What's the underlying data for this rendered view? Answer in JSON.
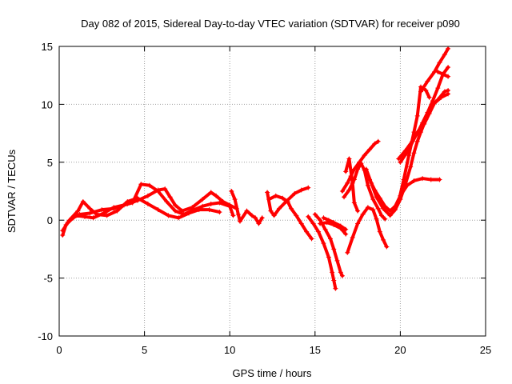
{
  "chart_data": {
    "type": "scatter",
    "title": "Day 082 of 2015, Sidereal Day-to-day VTEC variation (SDTVAR) for receiver p090",
    "xlabel": "GPS time / hours",
    "ylabel": "SDTVAR / TECUs",
    "xlim": [
      0,
      25
    ],
    "ylim": [
      -10,
      15
    ],
    "x_ticks": [
      0,
      5,
      10,
      15,
      20,
      25
    ],
    "y_ticks": [
      -10,
      -5,
      0,
      5,
      10,
      15
    ],
    "x_tick_labels": [
      "0",
      "5",
      "10",
      "15",
      "20",
      "25"
    ],
    "y_tick_labels": [
      "-10",
      "-5",
      "0",
      "5",
      "10",
      "15"
    ],
    "grid": true,
    "marker": "+",
    "color": "#ff0000",
    "series": [
      {
        "points": [
          [
            0.2,
            -1.3
          ],
          [
            0.4,
            -0.4
          ],
          [
            0.8,
            0.2
          ],
          [
            1.2,
            0.5
          ],
          [
            1.8,
            0.6
          ],
          [
            2.5,
            0.9
          ],
          [
            3.2,
            1.0
          ],
          [
            4.0,
            1.4
          ],
          [
            4.6,
            1.7
          ],
          [
            5.2,
            2.1
          ],
          [
            5.8,
            2.6
          ],
          [
            6.2,
            2.7
          ],
          [
            6.5,
            2.0
          ],
          [
            6.8,
            1.3
          ],
          [
            7.2,
            0.8
          ],
          [
            7.8,
            1.1
          ],
          [
            8.4,
            1.8
          ],
          [
            8.9,
            2.4
          ],
          [
            9.2,
            2.1
          ],
          [
            9.6,
            1.6
          ],
          [
            10.0,
            1.3
          ],
          [
            10.4,
            1.0
          ]
        ]
      },
      {
        "points": [
          [
            0.5,
            -0.2
          ],
          [
            1.0,
            0.4
          ],
          [
            1.5,
            0.3
          ],
          [
            2.0,
            0.2
          ],
          [
            2.6,
            0.6
          ],
          [
            3.2,
            1.1
          ],
          [
            3.8,
            1.3
          ],
          [
            4.3,
            1.5
          ],
          [
            4.8,
            3.1
          ],
          [
            5.3,
            3.0
          ],
          [
            5.8,
            2.5
          ],
          [
            6.3,
            1.6
          ],
          [
            6.8,
            0.8
          ],
          [
            7.3,
            0.5
          ],
          [
            7.9,
            0.9
          ],
          [
            8.4,
            1.2
          ],
          [
            8.9,
            1.4
          ],
          [
            9.4,
            1.5
          ],
          [
            10.0,
            1.2
          ],
          [
            10.2,
            0.4
          ]
        ]
      },
      {
        "points": [
          [
            0.2,
            -0.9
          ],
          [
            0.6,
            0.0
          ],
          [
            1.1,
            0.8
          ],
          [
            1.4,
            1.6
          ],
          [
            1.8,
            1.0
          ],
          [
            2.2,
            0.5
          ],
          [
            2.8,
            0.4
          ],
          [
            3.4,
            0.8
          ],
          [
            4.0,
            1.6
          ],
          [
            4.6,
            1.9
          ],
          [
            5.2,
            1.4
          ],
          [
            5.8,
            0.9
          ],
          [
            6.4,
            0.4
          ],
          [
            7.0,
            0.2
          ],
          [
            7.6,
            0.6
          ],
          [
            8.2,
            0.9
          ],
          [
            8.8,
            0.9
          ],
          [
            9.4,
            0.7
          ]
        ]
      },
      {
        "points": [
          [
            10.1,
            2.5
          ],
          [
            10.3,
            1.8
          ],
          [
            10.5,
            0.5
          ],
          [
            10.6,
            -0.1
          ],
          [
            11.0,
            0.8
          ],
          [
            11.3,
            0.4
          ],
          [
            11.5,
            0.2
          ],
          [
            11.7,
            -0.3
          ],
          [
            11.9,
            0.2
          ]
        ]
      },
      {
        "points": [
          [
            12.2,
            2.4
          ],
          [
            12.4,
            0.8
          ],
          [
            12.6,
            0.4
          ],
          [
            12.9,
            1.0
          ],
          [
            13.3,
            1.6
          ],
          [
            13.8,
            2.3
          ],
          [
            14.2,
            2.6
          ],
          [
            14.6,
            2.8
          ]
        ]
      },
      {
        "points": [
          [
            12.3,
            1.8
          ],
          [
            12.7,
            2.1
          ],
          [
            13.1,
            1.9
          ],
          [
            13.4,
            1.6
          ],
          [
            13.6,
            1.0
          ],
          [
            13.9,
            0.4
          ],
          [
            14.2,
            -0.3
          ],
          [
            14.5,
            -1.0
          ],
          [
            14.8,
            -1.6
          ]
        ]
      },
      {
        "points": [
          [
            15.0,
            0.5
          ],
          [
            15.3,
            0.0
          ],
          [
            15.6,
            -0.8
          ],
          [
            15.9,
            -1.6
          ],
          [
            16.1,
            -2.5
          ],
          [
            16.3,
            -3.5
          ],
          [
            16.5,
            -4.5
          ],
          [
            16.6,
            -4.8
          ]
        ]
      },
      {
        "points": [
          [
            14.6,
            0.3
          ],
          [
            14.9,
            -0.3
          ],
          [
            15.2,
            -1.0
          ],
          [
            15.5,
            -2.0
          ],
          [
            15.8,
            -3.2
          ],
          [
            16.0,
            -4.5
          ],
          [
            16.1,
            -5.2
          ],
          [
            16.2,
            -5.9
          ]
        ]
      },
      {
        "points": [
          [
            15.3,
            -0.3
          ],
          [
            15.7,
            -0.2
          ],
          [
            16.1,
            -0.4
          ],
          [
            16.5,
            -0.7
          ],
          [
            16.8,
            -1.2
          ]
        ]
      },
      {
        "points": [
          [
            15.5,
            0.2
          ],
          [
            15.8,
            0.0
          ],
          [
            16.1,
            -0.2
          ],
          [
            16.5,
            -0.5
          ],
          [
            16.8,
            -0.8
          ]
        ]
      },
      {
        "points": [
          [
            16.6,
            2.5
          ],
          [
            16.9,
            3.2
          ],
          [
            17.1,
            3.8
          ],
          [
            17.3,
            4.4
          ],
          [
            17.6,
            5.0
          ],
          [
            17.9,
            5.6
          ],
          [
            18.2,
            6.1
          ],
          [
            18.5,
            6.6
          ],
          [
            18.7,
            6.8
          ]
        ]
      },
      {
        "points": [
          [
            16.7,
            2.0
          ],
          [
            17.0,
            2.6
          ],
          [
            17.3,
            3.5
          ],
          [
            17.5,
            4.4
          ],
          [
            17.7,
            4.9
          ],
          [
            17.9,
            4.3
          ],
          [
            18.1,
            3.0
          ],
          [
            18.4,
            1.8
          ],
          [
            18.7,
            1.0
          ],
          [
            18.9,
            0.4
          ],
          [
            19.1,
            0.1
          ]
        ]
      },
      {
        "points": [
          [
            16.8,
            4.2
          ],
          [
            17.0,
            5.3
          ],
          [
            17.2,
            3.2
          ],
          [
            17.3,
            1.5
          ],
          [
            17.5,
            0.8
          ]
        ]
      },
      {
        "points": [
          [
            16.9,
            -2.8
          ],
          [
            17.2,
            -1.5
          ],
          [
            17.5,
            -0.3
          ],
          [
            17.8,
            0.5
          ],
          [
            18.1,
            1.1
          ],
          [
            18.4,
            0.9
          ],
          [
            18.6,
            0.1
          ],
          [
            18.8,
            -1.0
          ],
          [
            19.0,
            -1.7
          ],
          [
            19.2,
            -2.3
          ]
        ]
      },
      {
        "points": [
          [
            18.0,
            4.4
          ],
          [
            18.3,
            3.2
          ],
          [
            18.6,
            2.0
          ],
          [
            19.0,
            1.0
          ],
          [
            19.4,
            0.4
          ],
          [
            19.7,
            0.9
          ],
          [
            20.0,
            1.8
          ],
          [
            20.3,
            3.1
          ],
          [
            20.6,
            4.6
          ],
          [
            20.8,
            5.8
          ],
          [
            21.0,
            6.8
          ],
          [
            21.2,
            7.6
          ],
          [
            21.5,
            8.7
          ],
          [
            21.8,
            9.8
          ],
          [
            22.2,
            10.4
          ],
          [
            22.6,
            11.1
          ],
          [
            22.8,
            11.2
          ]
        ]
      },
      {
        "points": [
          [
            18.2,
            3.5
          ],
          [
            18.5,
            2.6
          ],
          [
            18.8,
            1.9
          ],
          [
            19.1,
            1.2
          ],
          [
            19.4,
            0.8
          ],
          [
            19.7,
            1.2
          ],
          [
            20.0,
            2.1
          ],
          [
            20.4,
            3.0
          ],
          [
            20.8,
            3.4
          ],
          [
            21.3,
            3.6
          ],
          [
            21.8,
            3.5
          ],
          [
            22.3,
            3.5
          ]
        ]
      },
      {
        "points": [
          [
            19.6,
            1.0
          ],
          [
            19.9,
            1.6
          ],
          [
            20.2,
            3.5
          ],
          [
            20.5,
            5.6
          ],
          [
            20.8,
            7.6
          ],
          [
            21.0,
            9.0
          ],
          [
            21.2,
            11.5
          ],
          [
            21.5,
            11.2
          ],
          [
            21.7,
            10.6
          ]
        ]
      },
      {
        "points": [
          [
            20.0,
            5.0
          ],
          [
            20.5,
            6.1
          ],
          [
            21.0,
            7.6
          ],
          [
            21.4,
            8.3
          ],
          [
            21.7,
            9.2
          ],
          [
            22.0,
            10.1
          ],
          [
            22.4,
            10.6
          ],
          [
            22.8,
            10.9
          ]
        ]
      },
      {
        "points": [
          [
            19.9,
            5.3
          ],
          [
            20.3,
            6.0
          ],
          [
            20.7,
            6.8
          ],
          [
            21.0,
            7.5
          ],
          [
            21.3,
            8.4
          ],
          [
            21.6,
            9.3
          ],
          [
            21.9,
            10.3
          ],
          [
            22.2,
            11.4
          ],
          [
            22.5,
            12.6
          ],
          [
            22.8,
            13.2
          ]
        ]
      },
      {
        "points": [
          [
            21.2,
            11.1
          ],
          [
            21.6,
            12.0
          ],
          [
            22.0,
            12.8
          ],
          [
            22.3,
            13.6
          ],
          [
            22.6,
            14.3
          ],
          [
            22.8,
            14.8
          ]
        ]
      },
      {
        "points": [
          [
            22.2,
            12.8
          ],
          [
            22.5,
            12.6
          ],
          [
            22.8,
            12.4
          ]
        ]
      }
    ]
  }
}
